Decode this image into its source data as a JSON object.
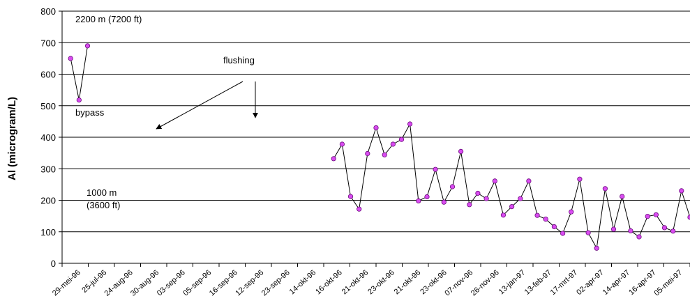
{
  "chart_data": {
    "type": "line",
    "ylabel": "Al (microgram/L)",
    "ylim": [
      0,
      800
    ],
    "yticks": [
      0,
      100,
      200,
      300,
      400,
      500,
      600,
      700,
      800
    ],
    "grid": true,
    "x_tick_labels": [
      "29-mei-96",
      "25-jul-96",
      "24-aug-96",
      "30-aug-96",
      "03-sep-96",
      "05-sep-96",
      "16-sep-96",
      "12-sep-96",
      "23-sep-96",
      "14-okt-96",
      "16-okt-96",
      "21-okt-96",
      "23-okt-96",
      "21-okt-96",
      "23-okt-96",
      "07-nov-96",
      "26-nov-96",
      "13-jan-97",
      "13-feb-97",
      "17-mrt-97",
      "02-apr-97",
      "14-apr-97",
      "16-apr-97",
      "05-mei-97"
    ],
    "series": [
      {
        "values": [
          650,
          518,
          690
        ]
      },
      {
        "values": [
          332,
          378,
          212,
          172,
          348,
          430,
          344,
          378,
          393,
          442,
          198,
          211,
          298,
          194,
          243,
          355,
          186,
          222,
          205,
          261,
          153,
          180,
          205,
          261,
          152,
          140,
          116,
          95,
          163,
          267,
          97,
          48,
          237,
          108,
          212,
          103,
          84,
          149,
          154,
          113,
          102,
          230,
          146
        ]
      }
    ],
    "annotations": [
      {
        "text": "2200 m (7200 ft)"
      },
      {
        "text": "flushing"
      },
      {
        "text": "bypass"
      },
      {
        "text": "1000 m"
      },
      {
        "text": "(3600 ft)"
      }
    ]
  }
}
